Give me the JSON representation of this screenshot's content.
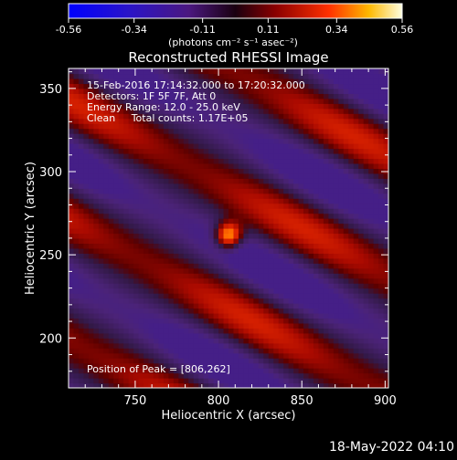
{
  "colorbar": {
    "ticks": [
      "-0.56",
      "-0.34",
      "-0.11",
      "0.11",
      "0.34",
      "0.56"
    ],
    "tick_values": [
      -0.56,
      -0.34,
      -0.11,
      0.11,
      0.34,
      0.56
    ],
    "range": [
      -0.56,
      0.56
    ],
    "unit_label": "(photons cm⁻² s⁻¹ asec⁻²)",
    "colormap": "RHESSI red-temperature with blue-purple negatives"
  },
  "timestamp_footer": "18-May-2022 04:10",
  "chart_data": {
    "type": "heatmap",
    "title": "Reconstructed RHESSI Image",
    "xlabel": "Heliocentric X (arcsec)",
    "ylabel": "Heliocentric Y (arcsec)",
    "xlim": [
      710,
      902
    ],
    "ylim": [
      170,
      362
    ],
    "xticks": [
      750,
      800,
      850,
      900
    ],
    "yticks": [
      200,
      250,
      300,
      350
    ],
    "annotations": [
      "15-Feb-2016 17:14:32.000 to 17:20:32.000",
      "Detectors: 1F 5F 7F, Att 0",
      "Energy Range: 12.0 - 25.0 keV",
      "Clean     Total counts: 1.17E+05"
    ],
    "peak_label": "Position of Peak = [806,262]",
    "peak": {
      "x": 806,
      "y": 262,
      "value": 0.56
    },
    "background_fringe": {
      "amplitude": 0.25,
      "orientation": "diagonal, descending to lower-right"
    }
  }
}
